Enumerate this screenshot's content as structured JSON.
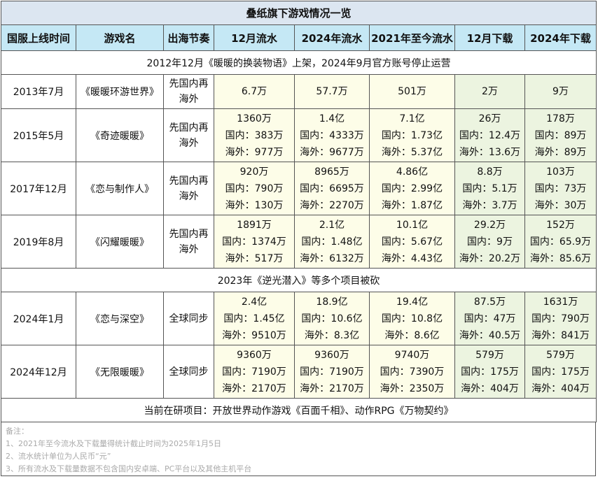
{
  "table": {
    "title": "叠纸旗下游戏情况一览",
    "headers": [
      "国服上线时间",
      "游戏名",
      "出海节奏",
      "12月流水",
      "2024年流水",
      "2021年至今流水",
      "12月下载",
      "2024年下载"
    ],
    "rows": [
      {
        "banner": "2012年12月《暖暖的换装物语》上架，2024年9月官方账号停止运营"
      },
      {
        "date": "2013年7月",
        "game": "《暖暖环游世界》",
        "mode": "先国内再海外",
        "cells": [
          [
            "6.7万"
          ],
          [
            "57.7万"
          ],
          [
            "501万"
          ],
          [
            "2万"
          ],
          [
            "9万"
          ]
        ]
      },
      {
        "date": "2015年5月",
        "game": "《奇迹暖暖》",
        "mode": "先国内再海外",
        "cells": [
          [
            "1360万",
            "国内：383万",
            "海外：977万"
          ],
          [
            "1.4亿",
            "国内：4333万",
            "海外：9677万"
          ],
          [
            "7.1亿",
            "国内：1.73亿",
            "海外：5.37亿"
          ],
          [
            "26万",
            "国内：12.4万",
            "海外：13.6万"
          ],
          [
            "178万",
            "国内：89万",
            "海外：89万"
          ]
        ]
      },
      {
        "date": "2017年12月",
        "game": "《恋与制作人》",
        "mode": "先国内再海外",
        "cells": [
          [
            "920万",
            "国内：790万",
            "海外：130万"
          ],
          [
            "8965万",
            "国内：6695万",
            "海外：2270万"
          ],
          [
            "4.86亿",
            "国内：2.99亿",
            "海外：1.87亿"
          ],
          [
            "8.8万",
            "国内：5.1万",
            "海外：3.7万"
          ],
          [
            "103万",
            "国内：73万",
            "海外：30万"
          ]
        ]
      },
      {
        "date": "2019年8月",
        "game": "《闪耀暖暖》",
        "mode": "先国内再海外",
        "cells": [
          [
            "1891万",
            "国内：1374万",
            "海外：517万"
          ],
          [
            "2.1亿",
            "国内：1.48亿",
            "海外：6132万"
          ],
          [
            "10.1亿",
            "国内：5.67亿",
            "海外：4.43亿"
          ],
          [
            "29.2万",
            "国内：9万",
            "海外：20.2万"
          ],
          [
            "152万",
            "国内：65.9万",
            "海外：85.6万"
          ]
        ]
      },
      {
        "banner": "2023年《逆光潜入》等多个项目被砍"
      },
      {
        "date": "2024年1月",
        "game": "《恋与深空》",
        "mode": "全球同步",
        "cells": [
          [
            "2.4亿",
            "国内：1.45亿",
            "海外：9510万"
          ],
          [
            "18.9亿",
            "国内：10.6亿",
            "海外：8.3亿"
          ],
          [
            "19.4亿",
            "国内：10.8亿",
            "海外：8.6亿"
          ],
          [
            "87.5万",
            "国内：47万",
            "海外：40.5万"
          ],
          [
            "1631万",
            "国内：790万",
            "海外：841万"
          ]
        ]
      },
      {
        "date": "2024年12月",
        "game": "《无限暖暖》",
        "mode": "全球同步",
        "cells": [
          [
            "9360万",
            "国内：7190万",
            "海外：2170万"
          ],
          [
            "9360万",
            "国内：7190万",
            "海外：2170万"
          ],
          [
            "9740万",
            "国内：7390万",
            "海外：2350万"
          ],
          [
            "579万",
            "国内：175万",
            "海外：404万"
          ],
          [
            "579万",
            "国内：175万",
            "海外：404万"
          ]
        ]
      },
      {
        "banner": "当前在研项目：开放世界动作游戏《百面千相》、动作RPG《万物契约》"
      }
    ]
  },
  "notes": [
    "备注：",
    "1、2021年至今流水及下载量得统计截止时间为2025年1月5日",
    "2、流水统计单位为人民币“元”",
    "3、所有流水及下载量数据不包含国内安卓端、PC平台以及其他主机平台"
  ]
}
